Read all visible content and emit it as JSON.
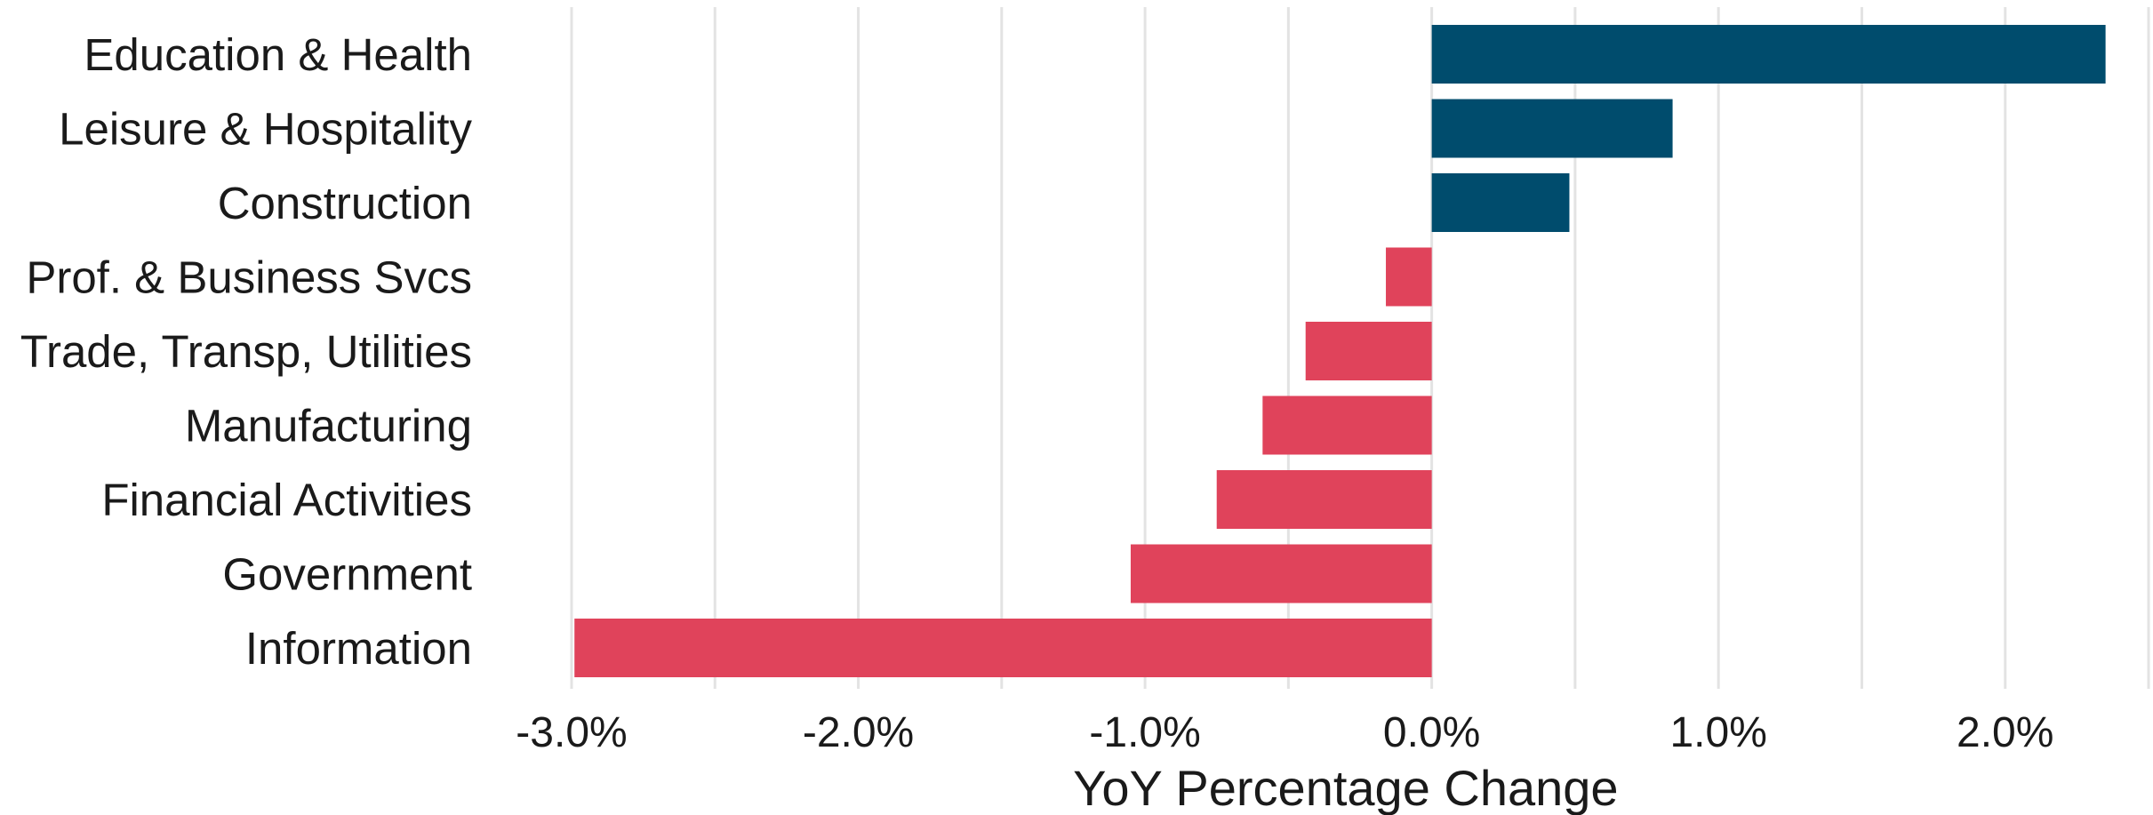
{
  "chart_data": {
    "type": "bar",
    "orientation": "horizontal",
    "title": "",
    "xlabel": "YoY Percentage Change",
    "ylabel": "",
    "categories": [
      "Education & Health",
      "Leisure & Hospitality",
      "Construction",
      "Prof. & Business Svcs",
      "Trade, Transp, Utilities",
      "Manufacturing",
      "Financial Activities",
      "Government",
      "Information"
    ],
    "values": [
      2.35,
      0.84,
      0.48,
      -0.16,
      -0.44,
      -0.59,
      -0.75,
      -1.05,
      -2.99
    ],
    "xlim": [
      -3.0,
      2.5
    ],
    "x_ticks": [
      -3.0,
      -2.0,
      -1.0,
      0.0,
      1.0,
      2.0
    ],
    "x_tick_labels": [
      "-3.0%",
      "-2.0%",
      "-1.0%",
      "0.0%",
      "1.0%",
      "2.0%"
    ],
    "grid": true,
    "legend": "none",
    "colors": {
      "positive": "#004c6d",
      "negative": "#e0435b",
      "grid": "#e3e3e3"
    }
  }
}
